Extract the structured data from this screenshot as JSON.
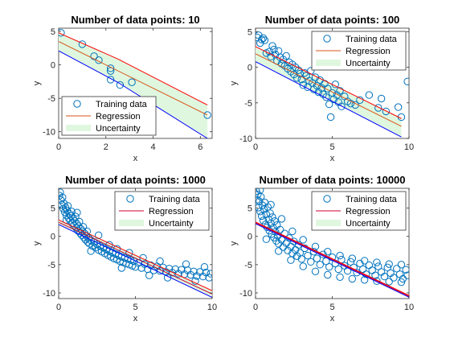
{
  "colors": {
    "training": "#0072BD",
    "regression": "#D95319",
    "regression_alt": "#CC0033",
    "band_fill": "#DFF7DF",
    "band_upper": "#FF0000",
    "band_lower": "#0000FF"
  },
  "legend": {
    "training": "Training data",
    "regression": "Regression",
    "uncertainty": "Uncertainty"
  },
  "chart_data": [
    {
      "type": "scatter",
      "title": "Number of data points: 10",
      "xlabel": "x",
      "ylabel": "y",
      "xlim": [
        0,
        6.5
      ],
      "ylim": [
        -11,
        5.5
      ],
      "xticks": [
        0,
        2,
        4,
        6
      ],
      "yticks": [
        5,
        0,
        -5,
        -10
      ],
      "legend_position": "bottom-left",
      "points": [
        [
          0.1,
          4.8
        ],
        [
          1.0,
          3.1
        ],
        [
          1.5,
          1.3
        ],
        [
          1.7,
          0.7
        ],
        [
          2.2,
          -0.5
        ],
        [
          2.2,
          -0.9
        ],
        [
          2.2,
          -2.2
        ],
        [
          2.6,
          -3.0
        ],
        [
          3.1,
          -2.6
        ],
        [
          6.3,
          -7.5
        ]
      ],
      "regression": [
        [
          0,
          3.5
        ],
        [
          6.3,
          -7.5
        ]
      ],
      "uncertainty_upper": [
        [
          0,
          4.8
        ],
        [
          2.5,
          0.9
        ],
        [
          6.3,
          -6.0
        ]
      ],
      "uncertainty_lower": [
        [
          0,
          2.1
        ],
        [
          2.5,
          -2.6
        ],
        [
          6.3,
          -11.0
        ]
      ],
      "regression_color": "regression"
    },
    {
      "type": "scatter",
      "title": "Number of data points: 100",
      "xlabel": "x",
      "ylabel": "y",
      "xlim": [
        0,
        10
      ],
      "ylim": [
        -10,
        5.5
      ],
      "xticks": [
        0,
        5,
        10
      ],
      "yticks": [
        5,
        0,
        -5,
        -10
      ],
      "legend_position": "top-right",
      "points": [
        [
          0.1,
          4.2
        ],
        [
          0.2,
          4.5
        ],
        [
          0.3,
          3.4
        ],
        [
          0.4,
          3.9
        ],
        [
          0.5,
          4.1
        ],
        [
          0.6,
          3.8
        ],
        [
          0.7,
          2.0
        ],
        [
          0.9,
          2.2
        ],
        [
          1.0,
          1.5
        ],
        [
          1.1,
          3.0
        ],
        [
          1.2,
          2.5
        ],
        [
          1.3,
          1.8
        ],
        [
          1.4,
          0.9
        ],
        [
          1.5,
          2.3
        ],
        [
          1.6,
          1.4
        ],
        [
          1.7,
          0.5
        ],
        [
          1.8,
          1.1
        ],
        [
          1.9,
          0.2
        ],
        [
          2.0,
          1.6
        ],
        [
          2.1,
          -0.2
        ],
        [
          2.2,
          0.7
        ],
        [
          2.3,
          -0.6
        ],
        [
          2.4,
          0.4
        ],
        [
          2.5,
          -1.0
        ],
        [
          2.6,
          0.0
        ],
        [
          2.7,
          -1.5
        ],
        [
          2.8,
          -0.4
        ],
        [
          2.9,
          -0.9
        ],
        [
          3.0,
          -1.7
        ],
        [
          3.1,
          -2.5
        ],
        [
          3.2,
          -0.8
        ],
        [
          3.3,
          -1.2
        ],
        [
          3.4,
          -2.8
        ],
        [
          3.5,
          -1.9
        ],
        [
          3.6,
          -0.5
        ],
        [
          3.7,
          -2.2
        ],
        [
          3.8,
          -3.1
        ],
        [
          3.9,
          -1.4
        ],
        [
          4.0,
          -2.6
        ],
        [
          4.1,
          -3.5
        ],
        [
          4.2,
          -1.8
        ],
        [
          4.3,
          -2.9
        ],
        [
          4.4,
          -3.8
        ],
        [
          4.5,
          -2.3
        ],
        [
          4.6,
          -4.2
        ],
        [
          4.7,
          -3.0
        ],
        [
          4.8,
          -5.2
        ],
        [
          4.9,
          -7.0
        ],
        [
          5.0,
          -3.6
        ],
        [
          5.1,
          -4.5
        ],
        [
          5.2,
          -2.4
        ],
        [
          5.3,
          -3.9
        ],
        [
          5.4,
          -4.9
        ],
        [
          5.5,
          -3.3
        ],
        [
          5.6,
          -5.5
        ],
        [
          5.8,
          -4.1
        ],
        [
          6.0,
          -4.8
        ],
        [
          6.2,
          -5.1
        ],
        [
          6.5,
          -5.3
        ],
        [
          6.8,
          -4.6
        ],
        [
          7.4,
          -3.9
        ],
        [
          8.0,
          -5.7
        ],
        [
          8.2,
          -4.4
        ],
        [
          8.5,
          -6.2
        ],
        [
          9.3,
          -5.6
        ],
        [
          9.5,
          -7.0
        ],
        [
          9.9,
          -2.0
        ]
      ],
      "regression": [
        [
          0,
          1.9
        ],
        [
          9.5,
          -8.3
        ]
      ],
      "uncertainty_upper": [
        [
          0,
          2.9
        ],
        [
          9.5,
          -7.2
        ]
      ],
      "uncertainty_lower": [
        [
          0,
          0.8
        ],
        [
          9.5,
          -9.8
        ]
      ],
      "regression_color": "regression"
    },
    {
      "type": "scatter",
      "title": "Number of data points: 1000",
      "xlabel": "x",
      "ylabel": "y",
      "xlim": [
        0,
        10
      ],
      "ylim": [
        -11,
        8.5
      ],
      "xticks": [
        0,
        5,
        10
      ],
      "yticks": [
        5,
        0,
        -5,
        -10
      ],
      "legend_position": "top-right",
      "points": [
        [
          0.05,
          7.2
        ],
        [
          0.1,
          7.8
        ],
        [
          0.15,
          6.4
        ],
        [
          0.2,
          5.6
        ],
        [
          0.25,
          6.9
        ],
        [
          0.3,
          4.9
        ],
        [
          0.35,
          5.8
        ],
        [
          0.4,
          4.3
        ],
        [
          0.45,
          5.1
        ],
        [
          0.5,
          3.7
        ],
        [
          0.55,
          4.6
        ],
        [
          0.6,
          5.4
        ],
        [
          0.65,
          3.2
        ],
        [
          0.7,
          4.0
        ],
        [
          0.75,
          2.8
        ],
        [
          0.8,
          3.6
        ],
        [
          0.85,
          4.4
        ],
        [
          0.9,
          2.3
        ],
        [
          0.95,
          3.1
        ],
        [
          1.0,
          1.9
        ],
        [
          1.05,
          2.7
        ],
        [
          1.1,
          3.5
        ],
        [
          1.15,
          1.5
        ],
        [
          1.2,
          2.2
        ],
        [
          1.25,
          1.0
        ],
        [
          1.3,
          1.8
        ],
        [
          1.35,
          2.6
        ],
        [
          1.4,
          0.6
        ],
        [
          1.45,
          1.3
        ],
        [
          1.5,
          0.2
        ],
        [
          1.55,
          0.9
        ],
        [
          1.6,
          1.7
        ],
        [
          1.65,
          -0.2
        ],
        [
          1.7,
          0.5
        ],
        [
          1.75,
          -0.6
        ],
        [
          1.8,
          0.1
        ],
        [
          1.85,
          0.9
        ],
        [
          1.9,
          -1.0
        ],
        [
          1.95,
          -0.3
        ],
        [
          2.0,
          -1.3
        ],
        [
          2.1,
          -0.7
        ],
        [
          2.2,
          -1.7
        ],
        [
          2.3,
          -1.0
        ],
        [
          2.4,
          -2.0
        ],
        [
          2.5,
          -1.4
        ],
        [
          2.6,
          -2.4
        ],
        [
          2.7,
          -1.7
        ],
        [
          2.8,
          -2.7
        ],
        [
          2.9,
          -2.0
        ],
        [
          3.0,
          -3.0
        ],
        [
          3.1,
          -2.3
        ],
        [
          3.2,
          -3.3
        ],
        [
          3.3,
          -2.6
        ],
        [
          3.4,
          -3.6
        ],
        [
          3.5,
          -2.9
        ],
        [
          3.6,
          -3.9
        ],
        [
          3.7,
          -3.1
        ],
        [
          3.8,
          -4.1
        ],
        [
          3.9,
          -3.4
        ],
        [
          4.0,
          -4.4
        ],
        [
          4.1,
          -3.6
        ],
        [
          4.2,
          -4.6
        ],
        [
          4.3,
          -3.8
        ],
        [
          4.4,
          -4.8
        ],
        [
          4.5,
          -4.0
        ],
        [
          4.6,
          -5.0
        ],
        [
          4.7,
          -4.2
        ],
        [
          4.8,
          -5.2
        ],
        [
          4.9,
          -4.4
        ],
        [
          5.0,
          -5.4
        ],
        [
          5.2,
          -4.7
        ],
        [
          5.4,
          -5.6
        ],
        [
          5.6,
          -4.9
        ],
        [
          5.8,
          -5.8
        ],
        [
          6.0,
          -5.1
        ],
        [
          6.2,
          -6.0
        ],
        [
          6.4,
          -5.3
        ],
        [
          6.6,
          -6.1
        ],
        [
          6.8,
          -5.5
        ],
        [
          7.0,
          -6.3
        ],
        [
          7.2,
          -5.7
        ],
        [
          7.4,
          -6.4
        ],
        [
          7.6,
          -5.8
        ],
        [
          7.8,
          -6.6
        ],
        [
          8.0,
          -5.9
        ],
        [
          8.2,
          -6.7
        ],
        [
          8.4,
          -6.0
        ],
        [
          8.6,
          -6.8
        ],
        [
          8.8,
          -6.2
        ],
        [
          9.0,
          -7.0
        ],
        [
          9.2,
          -6.3
        ],
        [
          9.4,
          -7.1
        ],
        [
          9.6,
          -6.4
        ],
        [
          9.8,
          -7.3
        ],
        [
          9.9,
          -6.6
        ],
        [
          0.5,
          2.9
        ],
        [
          1.2,
          4.2
        ],
        [
          2.1,
          -2.6
        ],
        [
          3.3,
          -1.5
        ],
        [
          4.1,
          -5.6
        ],
        [
          4.6,
          -2.9
        ],
        [
          5.5,
          -3.8
        ],
        [
          6.6,
          -4.4
        ],
        [
          7.1,
          -7.3
        ],
        [
          8.3,
          -4.9
        ],
        [
          8.9,
          -7.9
        ],
        [
          9.5,
          -5.4
        ],
        [
          2.6,
          0.2
        ],
        [
          3.8,
          -2.2
        ],
        [
          5.9,
          -6.9
        ]
      ],
      "regression": [
        [
          0,
          2.5
        ],
        [
          10,
          -10.2
        ]
      ],
      "uncertainty_upper": [
        [
          0,
          2.9
        ],
        [
          10,
          -9.6
        ]
      ],
      "uncertainty_lower": [
        [
          0,
          2.1
        ],
        [
          10,
          -10.8
        ]
      ],
      "regression_color": "regression_alt"
    },
    {
      "type": "scatter",
      "title": "Number of data points: 10000",
      "xlabel": "x",
      "ylabel": "y",
      "xlim": [
        0,
        10
      ],
      "ylim": [
        -11,
        8.5
      ],
      "xticks": [
        0,
        5,
        10
      ],
      "yticks": [
        5,
        0,
        -5,
        -10
      ],
      "legend_position": "top-right",
      "points": [
        [
          0.05,
          8.0
        ],
        [
          0.1,
          6.5
        ],
        [
          0.15,
          7.4
        ],
        [
          0.2,
          5.1
        ],
        [
          0.25,
          6.2
        ],
        [
          0.3,
          4.4
        ],
        [
          0.35,
          7.0
        ],
        [
          0.4,
          3.6
        ],
        [
          0.45,
          5.5
        ],
        [
          0.5,
          2.8
        ],
        [
          0.55,
          4.8
        ],
        [
          0.6,
          6.0
        ],
        [
          0.65,
          2.1
        ],
        [
          0.7,
          3.9
        ],
        [
          0.75,
          1.6
        ],
        [
          0.8,
          5.2
        ],
        [
          0.85,
          3.0
        ],
        [
          0.9,
          1.0
        ],
        [
          0.95,
          4.1
        ],
        [
          1.0,
          2.3
        ],
        [
          1.05,
          0.4
        ],
        [
          1.1,
          3.4
        ],
        [
          1.15,
          1.5
        ],
        [
          1.2,
          -0.2
        ],
        [
          1.25,
          2.7
        ],
        [
          1.3,
          0.8
        ],
        [
          1.35,
          -0.8
        ],
        [
          1.4,
          2.0
        ],
        [
          1.45,
          0.1
        ],
        [
          1.5,
          -1.3
        ],
        [
          1.6,
          1.2
        ],
        [
          1.7,
          -0.6
        ],
        [
          1.8,
          -1.9
        ],
        [
          1.9,
          0.5
        ],
        [
          2.0,
          -1.2
        ],
        [
          2.1,
          -2.5
        ],
        [
          2.2,
          -0.3
        ],
        [
          2.3,
          -1.8
        ],
        [
          2.4,
          -3.0
        ],
        [
          2.5,
          -0.9
        ],
        [
          2.6,
          -2.4
        ],
        [
          2.7,
          -3.5
        ],
        [
          2.8,
          -1.5
        ],
        [
          2.9,
          -2.9
        ],
        [
          3.0,
          -4.0
        ],
        [
          3.2,
          -2.1
        ],
        [
          3.4,
          -3.4
        ],
        [
          3.6,
          -4.5
        ],
        [
          3.8,
          -2.7
        ],
        [
          4.0,
          -3.9
        ],
        [
          4.2,
          -5.0
        ],
        [
          4.4,
          -3.2
        ],
        [
          4.6,
          -4.4
        ],
        [
          4.8,
          -5.4
        ],
        [
          5.0,
          -3.7
        ],
        [
          5.2,
          -4.8
        ],
        [
          5.4,
          -5.8
        ],
        [
          5.6,
          -4.1
        ],
        [
          5.8,
          -5.2
        ],
        [
          6.0,
          -6.1
        ],
        [
          6.2,
          -4.5
        ],
        [
          6.4,
          -5.5
        ],
        [
          6.6,
          -6.4
        ],
        [
          6.8,
          -4.8
        ],
        [
          7.0,
          -5.8
        ],
        [
          7.2,
          -6.7
        ],
        [
          7.4,
          -5.1
        ],
        [
          7.6,
          -6.0
        ],
        [
          7.8,
          -6.9
        ],
        [
          8.0,
          -5.3
        ],
        [
          8.2,
          -6.3
        ],
        [
          8.4,
          -7.1
        ],
        [
          8.6,
          -5.5
        ],
        [
          8.8,
          -6.5
        ],
        [
          9.0,
          -7.3
        ],
        [
          9.2,
          -5.7
        ],
        [
          9.4,
          -6.7
        ],
        [
          9.6,
          -7.5
        ],
        [
          9.8,
          -5.9
        ],
        [
          9.9,
          -6.9
        ],
        [
          0.3,
          8.2
        ],
        [
          1.0,
          5.6
        ],
        [
          1.7,
          3.1
        ],
        [
          2.4,
          0.9
        ],
        [
          3.1,
          -0.6
        ],
        [
          3.9,
          -1.8
        ],
        [
          4.7,
          -2.7
        ],
        [
          5.5,
          -3.4
        ],
        [
          6.3,
          -3.9
        ],
        [
          7.1,
          -4.3
        ],
        [
          7.9,
          -4.6
        ],
        [
          8.7,
          -4.9
        ],
        [
          9.5,
          -5.0
        ],
        [
          0.7,
          -0.5
        ],
        [
          1.5,
          -2.6
        ],
        [
          2.3,
          -4.2
        ],
        [
          3.1,
          -5.3
        ],
        [
          3.9,
          -6.2
        ],
        [
          4.7,
          -6.8
        ],
        [
          5.5,
          -7.2
        ],
        [
          6.3,
          -7.5
        ],
        [
          7.1,
          -7.7
        ],
        [
          7.9,
          -7.9
        ],
        [
          8.7,
          -8.0
        ],
        [
          9.5,
          -8.1
        ]
      ],
      "regression": [
        [
          0,
          2.4
        ],
        [
          10,
          -10.6
        ]
      ],
      "uncertainty_upper": [
        [
          0,
          2.55
        ],
        [
          10,
          -10.45
        ]
      ],
      "uncertainty_lower": [
        [
          0,
          2.25
        ],
        [
          10,
          -10.75
        ]
      ],
      "regression_color": "regression_alt"
    }
  ]
}
